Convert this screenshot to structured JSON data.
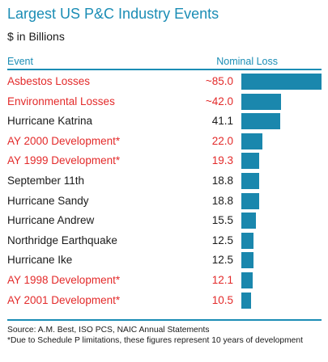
{
  "title": "Largest US P&C Industry Events",
  "subtitle": "$ in Billions",
  "headers": {
    "event": "Event",
    "loss": "Nominal Loss"
  },
  "colors": {
    "accent": "#1b8db5",
    "bar": "#1a87ad",
    "highlight": "#e32a2a",
    "text": "#1a1a1a"
  },
  "chart_data": {
    "type": "bar",
    "orientation": "horizontal",
    "title": "Largest US P&C Industry Events",
    "subtitle": "$ in Billions",
    "categories": [
      "Asbestos Losses",
      "Environmental Losses",
      "Hurricane Katrina",
      "AY 2000 Development*",
      "AY 1999 Development*",
      "September 11th",
      "Hurricane Sandy",
      "Hurricane Andrew",
      "Northridge Earthquake",
      "Hurricane Ike",
      "AY 1998 Development*",
      "AY 2001 Development*"
    ],
    "values": [
      85.0,
      42.0,
      41.1,
      22.0,
      19.3,
      18.8,
      18.8,
      15.5,
      12.5,
      12.5,
      12.1,
      10.5
    ],
    "value_labels": [
      "~85.0",
      "~42.0",
      "41.1",
      "22.0",
      "19.3",
      "18.8",
      "18.8",
      "15.5",
      "12.5",
      "12.5",
      "12.1",
      "10.5"
    ],
    "highlighted": [
      true,
      true,
      false,
      true,
      true,
      false,
      false,
      false,
      false,
      false,
      true,
      true
    ],
    "xlim": [
      0,
      85
    ],
    "grid": false,
    "legend": "none"
  },
  "footer": {
    "source": "Source: A.M. Best, ISO PCS, NAIC Annual Statements",
    "footnote": "*Due to Schedule P limitations, these figures represent 10 years of development"
  }
}
